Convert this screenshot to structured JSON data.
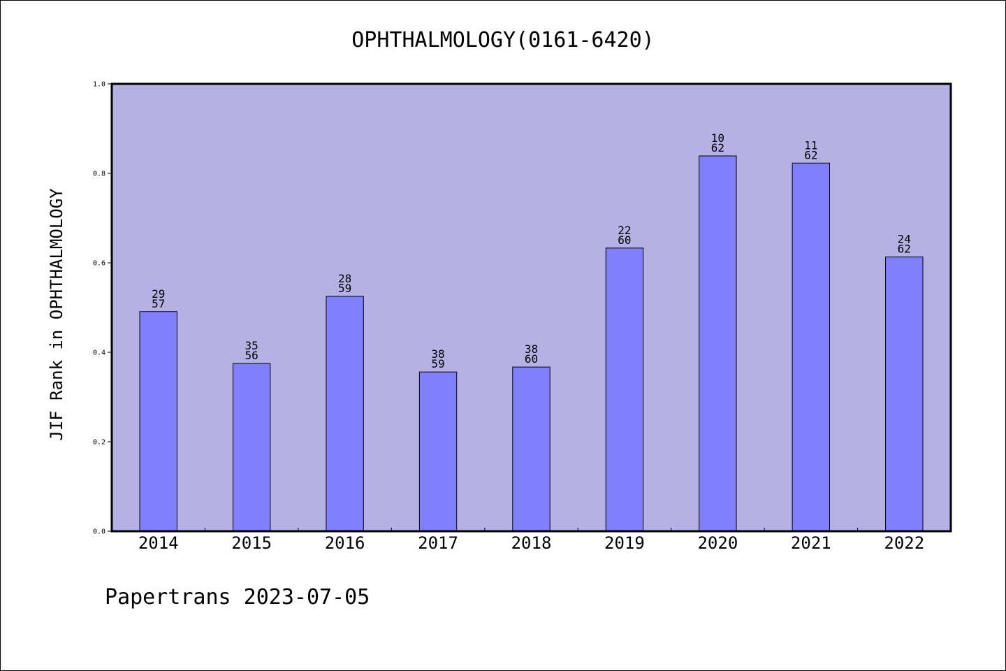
{
  "chart_data": {
    "type": "bar",
    "title": "OPHTHALMOLOGY(0161-6420)",
    "ylabel": "JIF Rank in OPHTHALMOLOGY",
    "xlabel": "",
    "ylim": [
      0,
      1
    ],
    "yticks": [
      "0.0",
      "0.2",
      "0.4",
      "0.6",
      "0.8",
      "1.0"
    ],
    "categories": [
      "2014",
      "2015",
      "2016",
      "2017",
      "2018",
      "2019",
      "2020",
      "2021",
      "2022"
    ],
    "values": [
      0.491,
      0.375,
      0.525,
      0.356,
      0.367,
      0.633,
      0.839,
      0.823,
      0.613
    ],
    "rank_labels": [
      {
        "rank": "29",
        "total": "57"
      },
      {
        "rank": "35",
        "total": "56"
      },
      {
        "rank": "28",
        "total": "59"
      },
      {
        "rank": "38",
        "total": "59"
      },
      {
        "rank": "38",
        "total": "60"
      },
      {
        "rank": "22",
        "total": "60"
      },
      {
        "rank": "10",
        "total": "62"
      },
      {
        "rank": "11",
        "total": "62"
      },
      {
        "rank": "24",
        "total": "62"
      }
    ],
    "grid": false,
    "colors": {
      "plot_background": "#b6b1e4",
      "bar_fill": "#8080ff",
      "bar_stroke": "#000000"
    }
  },
  "footer": {
    "text": "Papertrans 2023-07-05"
  }
}
